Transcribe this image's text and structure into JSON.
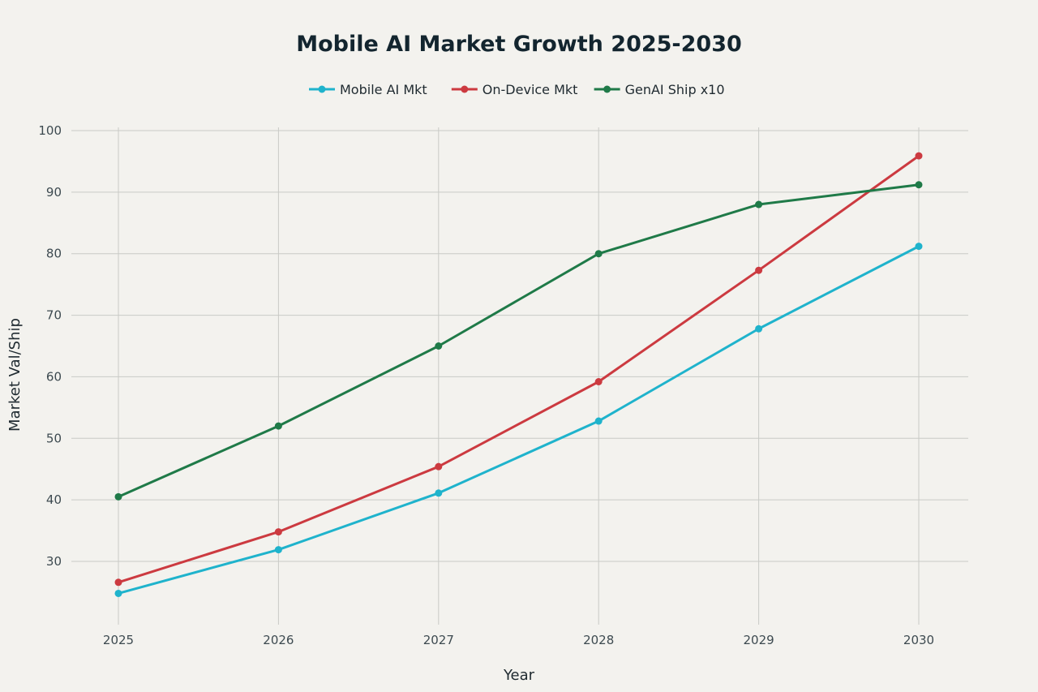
{
  "chart_data": {
    "type": "line",
    "title": "Mobile AI Market Growth 2025-2030",
    "xlabel": "Year",
    "ylabel": "Market Val/Ship",
    "categories": [
      "2025",
      "2026",
      "2027",
      "2028",
      "2029",
      "2030"
    ],
    "ylim": [
      20,
      100
    ],
    "yticks": [
      30,
      40,
      50,
      60,
      70,
      80,
      90,
      100
    ],
    "grid": true,
    "legend_position": "top-center",
    "series": [
      {
        "name": "Mobile AI Mkt",
        "color": "#1fb3cc",
        "values": [
          24.8,
          31.9,
          41.1,
          52.8,
          67.8,
          81.2
        ]
      },
      {
        "name": "On-Device Mkt",
        "color": "#cc3a40",
        "values": [
          26.6,
          34.8,
          45.4,
          59.2,
          77.3,
          95.9
        ]
      },
      {
        "name": "GenAI Ship x10",
        "color": "#1f7a48",
        "values": [
          40.5,
          52.0,
          65.0,
          80.0,
          88.0,
          91.2
        ]
      }
    ]
  }
}
